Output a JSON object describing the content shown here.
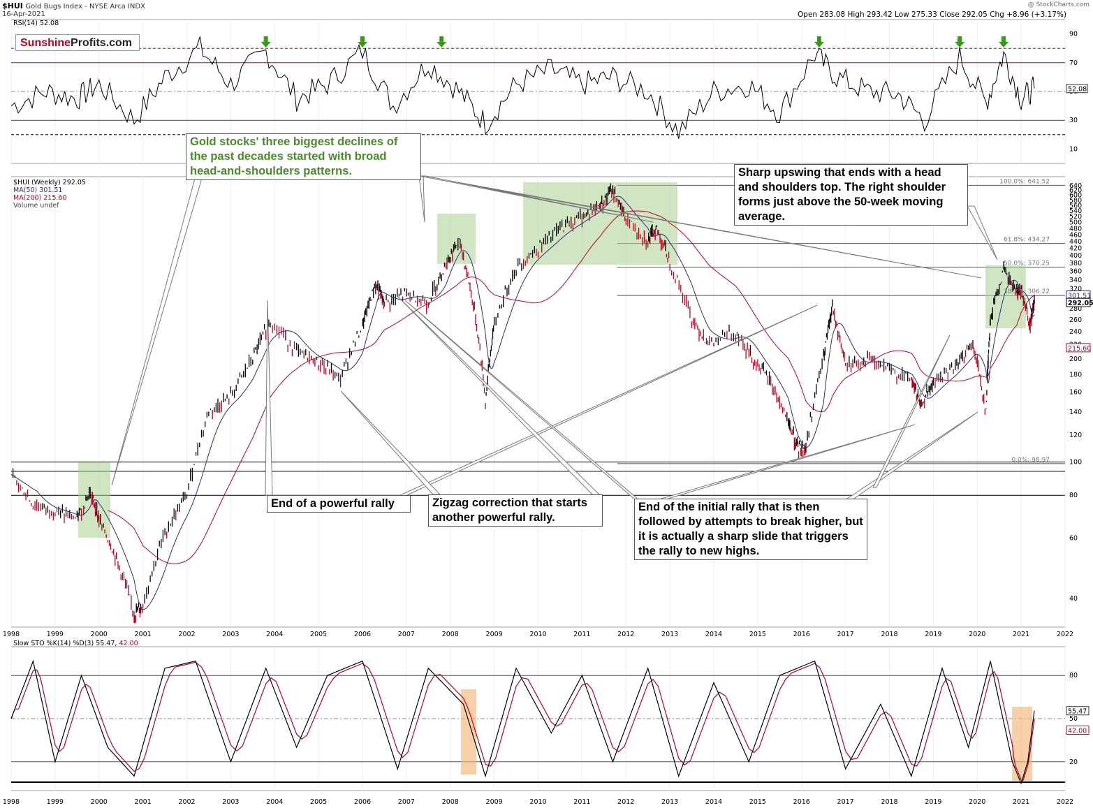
{
  "header": {
    "symbol": "$HUI",
    "name": "Gold Bugs Index - NYSE Arca INDX",
    "date": "16-Apr-2021",
    "watermark": "@ StockCharts.com",
    "ohlc": "Open 283.08 High 293.42 Low 275.33 Close 292.05 Chg +8.96 (+3.17%)"
  },
  "logo": {
    "part1": "Sunshine",
    "part2": "Profits.com"
  },
  "rsi_panel": {
    "label": "RSI(14) 52.08",
    "current": 52.08,
    "current_label": "52.08",
    "ticks": [
      "90",
      "70",
      "50",
      "30",
      "10"
    ],
    "levels": {
      "overbought": 70,
      "oversold": 30,
      "upper_dashed": 80,
      "lower_dashed": 20
    }
  },
  "price_panel": {
    "legend": [
      "$HUI (Weekly) 292.05",
      "MA(50) 301.51",
      "MA(200) 215.60",
      "Volume undef"
    ],
    "right_labels": [
      "301.51",
      "292.05",
      "215.60"
    ],
    "ticks": [
      "640",
      "620",
      "600",
      "580",
      "560",
      "540",
      "520",
      "500",
      "480",
      "460",
      "440",
      "420",
      "400",
      "380",
      "360",
      "340",
      "320",
      "300",
      "280",
      "260",
      "240",
      "220",
      "200",
      "180",
      "160",
      "140",
      "120",
      "100",
      "80",
      "60",
      "40"
    ],
    "fib_labels": [
      "100.0%: 641.52",
      "61.8%: 434.27",
      "50.0%: 370.25",
      "38.2%: 306.22",
      "0.0%: 98.97"
    ]
  },
  "sto_panel": {
    "label_main": "Slow STO %K(14) %D(3) 55.47,",
    "label_d": "42.00",
    "k_label": "55.47",
    "d_label": "42.00",
    "ticks": [
      "80",
      "50",
      "20"
    ]
  },
  "x_axis": {
    "years": [
      "1998",
      "1999",
      "2000",
      "2001",
      "2002",
      "2003",
      "2004",
      "2005",
      "2006",
      "2007",
      "2008",
      "2009",
      "2010",
      "2011",
      "2012",
      "2013",
      "2014",
      "2015",
      "2016",
      "2017",
      "2018",
      "2019",
      "2020",
      "2021",
      "2022"
    ]
  },
  "annotations": {
    "hs_patterns": "Gold stocks' three biggest declines of the past decades started with broad head-and-shoulders patterns.",
    "sharp_upswing": "Sharp upswing that ends with a head and shoulders top. The right shoulder forms just above the 50-week moving average.",
    "end_powerful_rally": "End of a powerful rally",
    "zigzag": "Zigzag correction that starts another powerful rally.",
    "end_initial_rally": "End of the initial rally that is then followed by attempts to break higher, but it is actually a sharp slide that triggers the rally to new highs."
  },
  "colors": {
    "up": "#000000",
    "down": "#c0001a",
    "ma50": "#2c2c7a",
    "ma200": "#c0001a",
    "hs_box": "#a9cf8f",
    "sto_box": "#f2b77a",
    "arrow": "#3a9a1a",
    "rsi_fill_high": "#2e6b2e",
    "rsi_fill_low": "#b0404a"
  },
  "chart_data": [
    {
      "type": "line",
      "title": "$HUI Gold Bugs Index (Weekly)",
      "xlabel": "",
      "ylabel": "",
      "scale": "log",
      "ylim": [
        33,
        680
      ],
      "series": [
        {
          "name": "$HUI (Weekly)",
          "x": [
            1998.0,
            1998.5,
            1999.0,
            1999.5,
            1999.8,
            2000.0,
            2000.4,
            2000.8,
            2001.0,
            2001.5,
            2002.0,
            2002.5,
            2003.0,
            2003.5,
            2003.9,
            2004.5,
            2005.0,
            2005.5,
            2006.0,
            2006.3,
            2006.5,
            2007.0,
            2007.5,
            2007.9,
            2008.2,
            2008.5,
            2008.8,
            2009.0,
            2009.5,
            2010.0,
            2010.5,
            2011.0,
            2011.4,
            2011.7,
            2012.0,
            2012.5,
            2012.7,
            2013.0,
            2013.5,
            2013.9,
            2014.5,
            2014.9,
            2015.3,
            2015.7,
            2015.9,
            2016.1,
            2016.5,
            2016.7,
            2017.0,
            2017.5,
            2018.0,
            2018.5,
            2018.7,
            2019.0,
            2019.5,
            2019.9,
            2020.2,
            2020.3,
            2020.6,
            2020.9,
            2021.0,
            2021.2,
            2021.3
          ],
          "values": [
            92,
            75,
            72,
            68,
            82,
            68,
            52,
            36,
            38,
            62,
            80,
            140,
            155,
            200,
            258,
            210,
            195,
            175,
            250,
            330,
            290,
            310,
            290,
            380,
            440,
            300,
            150,
            250,
            370,
            420,
            480,
            520,
            560,
            620,
            510,
            440,
            480,
            380,
            260,
            220,
            240,
            200,
            170,
            130,
            110,
            110,
            200,
            280,
            190,
            200,
            185,
            175,
            145,
            170,
            190,
            220,
            140,
            260,
            360,
            310,
            320,
            250,
            292
          ]
        }
      ]
    },
    {
      "type": "line",
      "title": "RSI(14)",
      "xlabel": "",
      "ylabel": "",
      "ylim": [
        0,
        100
      ],
      "series": [
        {
          "name": "RSI(14)",
          "x": [
            1998.0,
            1998.8,
            1999.5,
            2000.0,
            2000.8,
            2001.5,
            2002.3,
            2003.0,
            2003.8,
            2004.5,
            2005.2,
            2006.0,
            2006.7,
            2007.5,
            2008.2,
            2008.8,
            2009.5,
            2010.3,
            2011.0,
            2011.7,
            2012.5,
            2013.2,
            2014.0,
            2014.8,
            2015.5,
            2016.3,
            2016.8,
            2017.5,
            2018.2,
            2018.8,
            2019.6,
            2020.2,
            2020.6,
            2021.0,
            2021.3
          ],
          "values": [
            40,
            50,
            45,
            55,
            30,
            60,
            80,
            55,
            78,
            45,
            55,
            78,
            40,
            70,
            50,
            28,
            55,
            65,
            55,
            60,
            50,
            22,
            50,
            55,
            35,
            76,
            60,
            50,
            48,
            30,
            74,
            42,
            76,
            45,
            52.08
          ]
        }
      ]
    },
    {
      "type": "line",
      "title": "Slow STO %K(14) %D(3)",
      "xlabel": "",
      "ylabel": "",
      "ylim": [
        0,
        100
      ],
      "series": [
        {
          "name": "%K(14)",
          "x": [
            1998.0,
            1998.5,
            1999.0,
            1999.6,
            2000.2,
            2000.8,
            2001.5,
            2002.2,
            2003.0,
            2003.8,
            2004.5,
            2005.2,
            2006.0,
            2006.8,
            2007.5,
            2008.3,
            2008.8,
            2009.5,
            2010.3,
            2011.0,
            2011.7,
            2012.5,
            2013.2,
            2014.0,
            2014.8,
            2015.5,
            2016.3,
            2017.0,
            2017.8,
            2018.5,
            2019.2,
            2019.8,
            2020.3,
            2020.8,
            2021.0,
            2021.15,
            2021.3
          ],
          "values": [
            50,
            90,
            20,
            80,
            30,
            10,
            85,
            90,
            20,
            85,
            30,
            80,
            90,
            15,
            85,
            60,
            10,
            85,
            40,
            80,
            20,
            85,
            10,
            75,
            20,
            80,
            90,
            15,
            60,
            10,
            85,
            30,
            90,
            20,
            5,
            20,
            55.47
          ]
        },
        {
          "name": "%D(3)",
          "x": [
            1998.0,
            1998.5,
            1999.0,
            1999.6,
            2000.2,
            2000.8,
            2001.5,
            2002.2,
            2003.0,
            2003.8,
            2004.5,
            2005.2,
            2006.0,
            2006.8,
            2007.5,
            2008.3,
            2008.8,
            2009.5,
            2010.3,
            2011.0,
            2011.7,
            2012.5,
            2013.2,
            2014.0,
            2014.8,
            2015.5,
            2016.3,
            2017.0,
            2017.8,
            2018.5,
            2019.2,
            2019.8,
            2020.3,
            2020.8,
            2021.0,
            2021.15,
            2021.3
          ],
          "values": [
            48,
            85,
            25,
            75,
            32,
            12,
            80,
            85,
            25,
            80,
            32,
            75,
            85,
            18,
            80,
            58,
            12,
            80,
            42,
            75,
            22,
            80,
            12,
            70,
            22,
            75,
            85,
            18,
            58,
            12,
            80,
            32,
            85,
            22,
            8,
            22,
            42.0
          ]
        }
      ]
    }
  ]
}
